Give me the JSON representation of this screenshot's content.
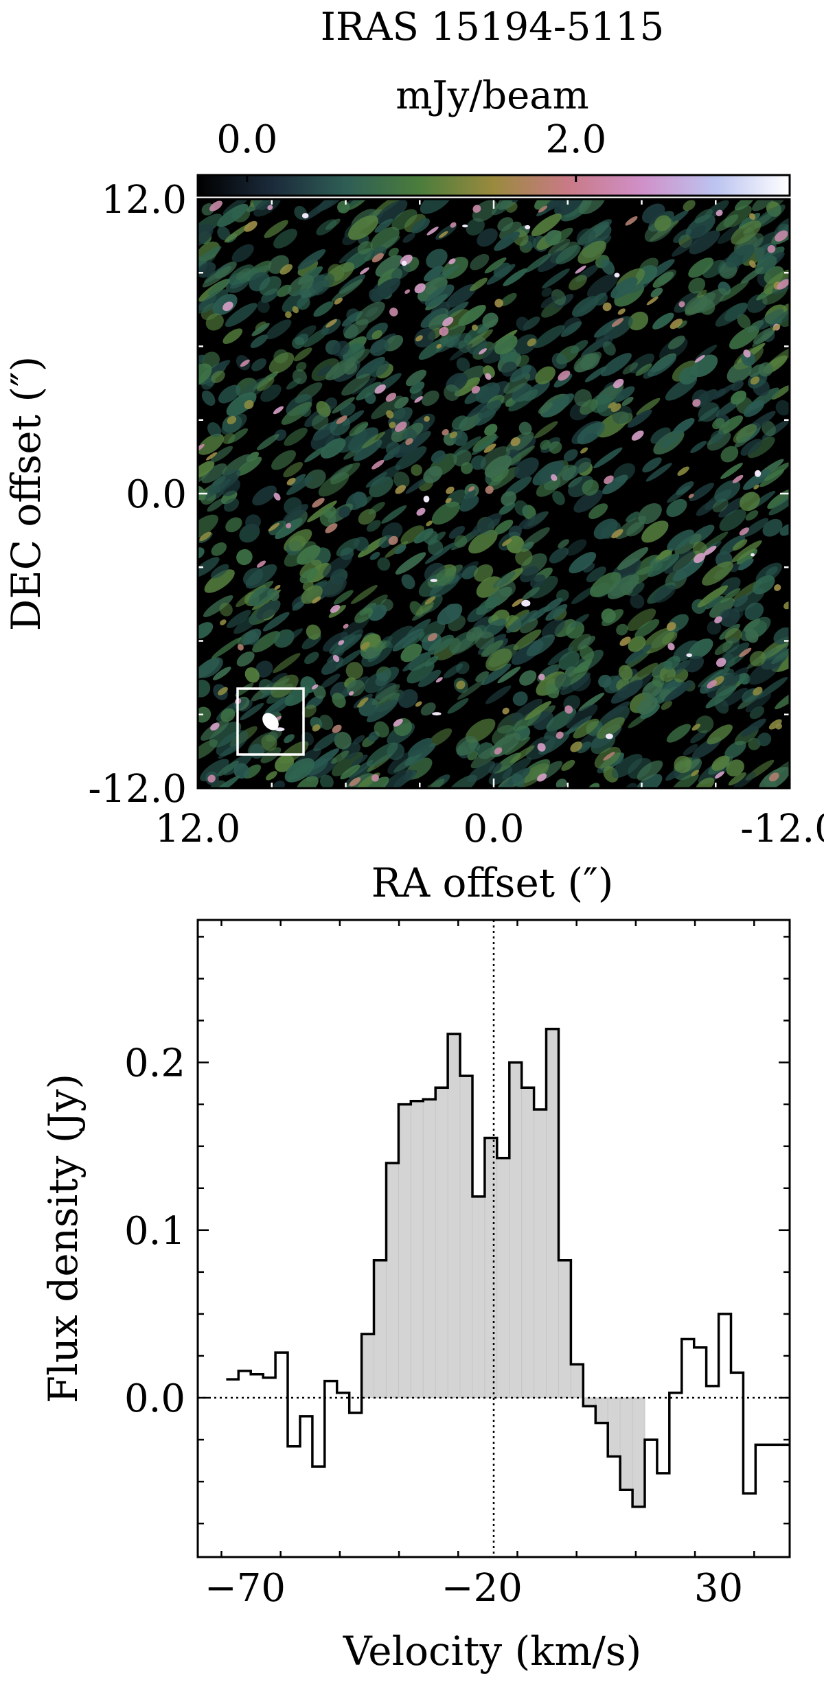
{
  "chart_data": [
    {
      "type": "heatmap",
      "title": "IRAS 15194-5115",
      "colorbar": {
        "label": "mJy/beam",
        "ticks": [
          0.0,
          2.0
        ],
        "tick_labels": [
          "0.0",
          "2.0"
        ],
        "range": [
          -0.3,
          3.3
        ],
        "placement": "top",
        "colors": [
          "#000000",
          "#1b2a3a",
          "#2e5e55",
          "#4b7d3c",
          "#9a8a3e",
          "#c97a86",
          "#d090c8",
          "#bcc4f0",
          "#ffffff"
        ]
      },
      "xlabel": "RA offset (″)",
      "ylabel": "DEC offset (″)",
      "xlim": [
        12.0,
        -12.0
      ],
      "ylim": [
        -12.0,
        12.0
      ],
      "xticks": [
        12.0,
        0.0,
        -12.0
      ],
      "xtick_labels": [
        "12.0",
        "0.0",
        "-12.0"
      ],
      "yticks": [
        12.0,
        0.0,
        -12.0
      ],
      "ytick_labels": [
        "12.0",
        "0.0",
        "-12.0"
      ],
      "beam": {
        "ra_offset": 9.5,
        "dec_offset": -9.3,
        "major_arcsec": 1.0,
        "minor_arcsec": 0.7,
        "pa_deg": 30
      }
    },
    {
      "type": "bar",
      "style": "step",
      "xlabel": "Velocity (km/s)",
      "ylabel": "Flux density (Jy)",
      "xlim": [
        -80,
        45
      ],
      "ylim": [
        -0.095,
        0.285
      ],
      "xticks": [
        -70,
        -20,
        30
      ],
      "xtick_labels": [
        "−70",
        "−20",
        "30"
      ],
      "yticks": [
        0.0,
        0.1,
        0.2
      ],
      "ytick_labels": [
        "0.0",
        "0.1",
        "0.2"
      ],
      "bin_width": 2.6,
      "reference_velocity": -17.5,
      "shaded_range": [
        -46.5,
        13.5
      ],
      "x": [
        -72.7,
        -70.1,
        -67.5,
        -64.9,
        -62.3,
        -59.7,
        -57.1,
        -54.5,
        -51.9,
        -49.3,
        -46.7,
        -44.1,
        -41.5,
        -38.9,
        -36.3,
        -33.7,
        -31.1,
        -28.5,
        -25.9,
        -23.3,
        -20.7,
        -18.1,
        -15.5,
        -12.9,
        -10.3,
        -7.7,
        -5.1,
        -2.5,
        0.1,
        2.7,
        5.3,
        7.9,
        10.5,
        13.1,
        15.7,
        18.3,
        20.9,
        23.5,
        26.1,
        28.7,
        31.3,
        33.9,
        36.5,
        39.1,
        41.7,
        44.3
      ],
      "values": [
        0.011,
        0.016,
        0.014,
        0.012,
        0.027,
        -0.029,
        -0.011,
        -0.041,
        0.01,
        0.003,
        -0.009,
        0.038,
        0.082,
        0.14,
        0.175,
        0.177,
        0.178,
        0.185,
        0.217,
        0.192,
        0.12,
        0.155,
        0.143,
        0.2,
        0.185,
        0.172,
        0.22,
        0.082,
        0.02,
        -0.005,
        -0.015,
        -0.035,
        -0.055,
        -0.065,
        -0.025,
        -0.045,
        0.003,
        0.035,
        0.03,
        0.007,
        0.05,
        0.015,
        -0.057,
        -0.028,
        -0.028,
        -0.028
      ]
    }
  ]
}
